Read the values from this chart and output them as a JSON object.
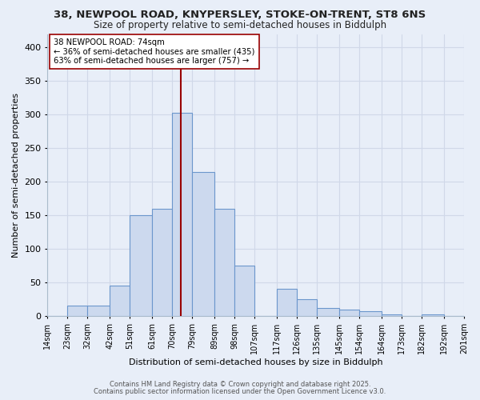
{
  "title_line1": "38, NEWPOOL ROAD, KNYPERSLEY, STOKE-ON-TRENT, ST8 6NS",
  "title_line2": "Size of property relative to semi-detached houses in Biddulph",
  "xlabel": "Distribution of semi-detached houses by size in Biddulph",
  "ylabel": "Number of semi-detached properties",
  "bin_labels": [
    "14sqm",
    "23sqm",
    "32sqm",
    "42sqm",
    "51sqm",
    "61sqm",
    "70sqm",
    "79sqm",
    "89sqm",
    "98sqm",
    "107sqm",
    "117sqm",
    "126sqm",
    "135sqm",
    "145sqm",
    "154sqm",
    "164sqm",
    "173sqm",
    "182sqm",
    "192sqm",
    "201sqm"
  ],
  "bin_edges": [
    14,
    23,
    32,
    42,
    51,
    61,
    70,
    79,
    89,
    98,
    107,
    117,
    126,
    135,
    145,
    154,
    164,
    173,
    182,
    192,
    201
  ],
  "bar_heights": [
    0,
    15,
    15,
    45,
    150,
    160,
    303,
    215,
    160,
    75,
    0,
    40,
    25,
    12,
    10,
    7,
    2,
    0,
    2,
    0
  ],
  "bar_facecolor": "#ccd9ee",
  "bar_edgecolor": "#6b96cc",
  "vline_x": 74,
  "vline_color": "#990000",
  "annotation_title": "38 NEWPOOL ROAD: 74sqm",
  "annotation_line1": "← 36% of semi-detached houses are smaller (435)",
  "annotation_line2": "63% of semi-detached houses are larger (757) →",
  "annotation_box_facecolor": "#ffffff",
  "annotation_box_edgecolor": "#990000",
  "ylim": [
    0,
    420
  ],
  "yticks": [
    0,
    50,
    100,
    150,
    200,
    250,
    300,
    350,
    400
  ],
  "footer_line1": "Contains HM Land Registry data © Crown copyright and database right 2025.",
  "footer_line2": "Contains public sector information licensed under the Open Government Licence v3.0.",
  "bg_color": "#e8eef8",
  "grid_color": "#d0d8e8",
  "spine_color": "#aabbcc"
}
